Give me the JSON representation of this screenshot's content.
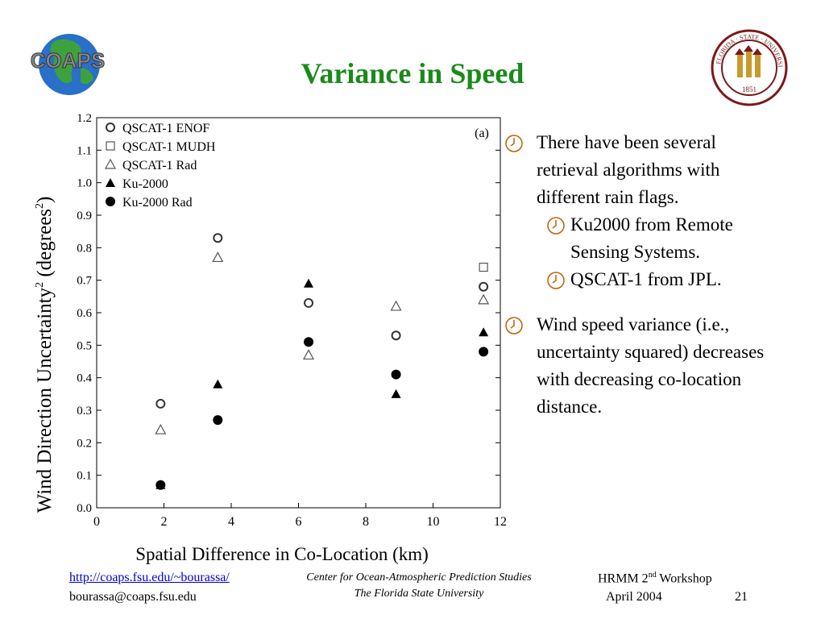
{
  "slide": {
    "title": "Variance in Speed",
    "logo_text": "COAPS",
    "seal": {
      "top": "FLORIDA · STATE · UNIVERSITY",
      "year": "1851"
    }
  },
  "bullets": [
    {
      "text": "There have been several retrieval algorithms with different rain flags.",
      "sub": [
        "Ku2000 from Remote Sensing Systems.",
        "QSCAT-1 from JPL."
      ]
    },
    {
      "text": "Wind speed variance (i.e., uncertainty squared) decreases with decreasing co-location distance.",
      "sub": []
    }
  ],
  "footer": {
    "url": "http://coaps.fsu.edu/~bourassa/",
    "email": "bourassa@coaps.fsu.edu",
    "center_line1": "Center for Ocean-Atmospheric Prediction Studies",
    "center_line2": "The Florida State University",
    "workshop_pre": "HRMM 2",
    "workshop_sup": "nd",
    "workshop_post": " Workshop",
    "date": "April 2004",
    "page": "21"
  },
  "colors": {
    "title": "#1a8a1a",
    "link": "#0000cc",
    "bullet_icon": "#c06000"
  },
  "chart_data": {
    "type": "scatter",
    "annotation": "(a)",
    "xlabel": "Spatial Difference in Co-Location (km)",
    "ylabel_main": "Wind Direction Uncertainty",
    "ylabel_sup": "2",
    "ylabel_units_pre": "(degrees",
    "ylabel_units_sup": "2",
    "ylabel_units_post": ")",
    "xlim": [
      0,
      12
    ],
    "ylim": [
      0,
      1.2
    ],
    "x_ticks": [
      "0",
      "2",
      "4",
      "6",
      "8",
      "10",
      "12"
    ],
    "y_ticks": [
      "0.0",
      "0.1",
      "0.2",
      "0.3",
      "0.4",
      "0.5",
      "0.6",
      "0.7",
      "0.8",
      "0.9",
      "1.0",
      "1.1",
      "1.2"
    ],
    "legend_position": "top-left",
    "series": [
      {
        "name": "QSCAT-1 ENOF",
        "marker": "open-circle",
        "x": [
          1.9,
          3.6,
          6.3,
          8.9,
          11.5
        ],
        "y": [
          0.32,
          0.83,
          0.63,
          0.53,
          0.68
        ]
      },
      {
        "name": "QSCAT-1 MUDH",
        "marker": "open-square",
        "x": [
          11.5
        ],
        "y": [
          0.74
        ]
      },
      {
        "name": "QSCAT-1 Rad",
        "marker": "open-triangle",
        "x": [
          1.9,
          3.6,
          6.3,
          8.9,
          11.5
        ],
        "y": [
          0.24,
          0.77,
          0.47,
          0.62,
          0.64
        ]
      },
      {
        "name": "Ku-2000",
        "marker": "filled-triangle",
        "x": [
          1.9,
          3.6,
          6.3,
          8.9,
          11.5
        ],
        "y": [
          0.07,
          0.38,
          0.69,
          0.35,
          0.54
        ]
      },
      {
        "name": "Ku-2000 Rad",
        "marker": "filled-circle",
        "x": [
          1.9,
          3.6,
          6.3,
          8.9,
          11.5
        ],
        "y": [
          0.07,
          0.27,
          0.51,
          0.41,
          0.48
        ]
      }
    ]
  }
}
